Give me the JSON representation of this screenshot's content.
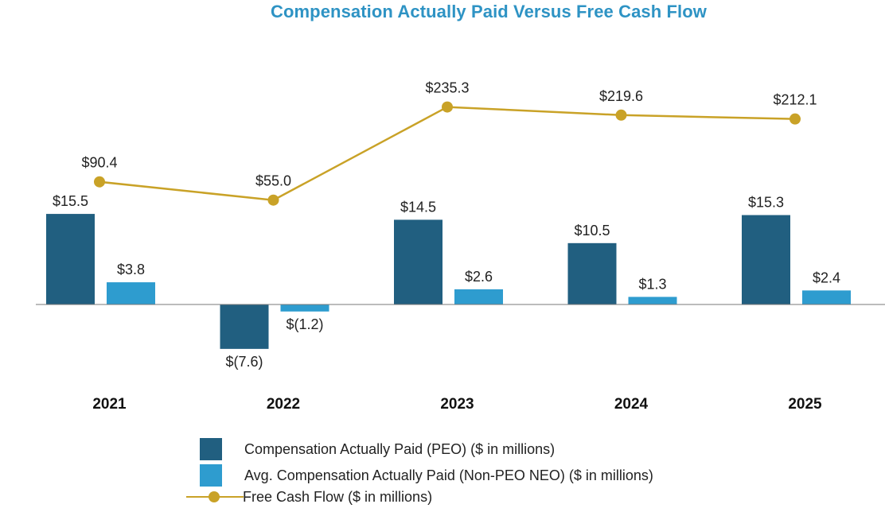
{
  "chart_data": {
    "type": "bar+line",
    "title": "Compensation Actually Paid Versus Free Cash Flow",
    "categories": [
      "2021",
      "2022",
      "2023",
      "2024",
      "2025"
    ],
    "series": [
      {
        "name": "Compensation Actually Paid (PEO) ($ in millions)",
        "kind": "bar",
        "color": "#215f80",
        "values": [
          15.5,
          -7.6,
          14.5,
          10.5,
          15.3
        ],
        "labels": [
          "$15.5",
          "$(7.6)",
          "$14.5",
          "$10.5",
          "$15.3"
        ]
      },
      {
        "name": "Avg. Compensation Actually Paid (Non-PEO NEO) ($ in millions)",
        "kind": "bar",
        "color": "#2e9ccf",
        "values": [
          3.8,
          -1.2,
          2.6,
          1.3,
          2.4
        ],
        "labels": [
          "$3.8",
          "$(1.2)",
          "$2.6",
          "$1.3",
          "$2.4"
        ]
      },
      {
        "name": "Free Cash Flow ($ in millions)",
        "kind": "line",
        "color": "#c9a227",
        "values": [
          90.4,
          55.0,
          235.3,
          219.6,
          212.1
        ],
        "labels": [
          "$90.4",
          "$55.0",
          "$235.3",
          "$219.6",
          "$212.1"
        ]
      }
    ],
    "legend": [
      "Compensation Actually Paid (PEO) ($ in millions)",
      "Avg. Compensation Actually Paid (Non-PEO NEO) ($ in millions)",
      "Free Cash Flow ($ in millions)"
    ],
    "legend_position": "bottom",
    "grid": false
  }
}
